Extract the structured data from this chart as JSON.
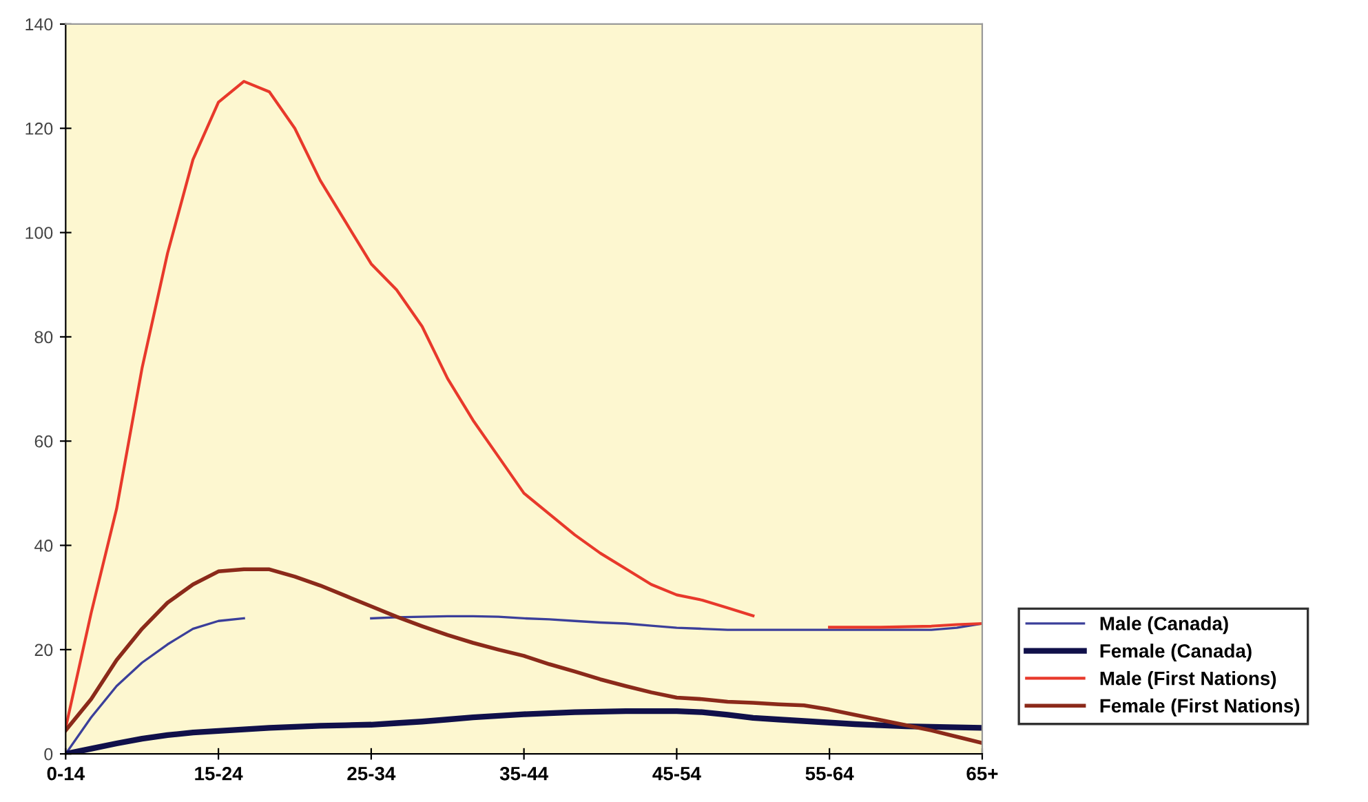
{
  "chart_data": {
    "type": "line",
    "categories": [
      "0-14",
      null,
      null,
      null,
      null,
      null,
      "15-24",
      null,
      null,
      null,
      null,
      null,
      "25-34",
      null,
      null,
      null,
      null,
      null,
      "35-44",
      null,
      null,
      null,
      null,
      null,
      "45-54",
      null,
      null,
      null,
      null,
      null,
      "55-64",
      null,
      null,
      null,
      null,
      null,
      "65+"
    ],
    "ylim": [
      0,
      140
    ],
    "yticks": [
      0,
      20,
      40,
      60,
      80,
      100,
      120,
      140
    ],
    "grid": false,
    "legend": "right",
    "marker": "none",
    "line_style": "solid",
    "series": [
      {
        "name": "Male (Canada)",
        "color": "#3b3f9a",
        "values": [
          0,
          7,
          13,
          17.5,
          21,
          24,
          25.5,
          26,
          null,
          null,
          null,
          null,
          26,
          26.2,
          26.3,
          26.4,
          26.4,
          26.3,
          26,
          25.8,
          25.5,
          25.2,
          25,
          24.6,
          24.2,
          24,
          23.8,
          23.8,
          23.8,
          23.8,
          23.8,
          23.8,
          23.8,
          23.8,
          23.8,
          24.2,
          25
        ]
      },
      {
        "name": "Female (Canada)",
        "color": "#10104a",
        "values": [
          0,
          1,
          2,
          2.9,
          3.6,
          4.1,
          4.4,
          4.7,
          5,
          5.2,
          5.4,
          5.5,
          5.6,
          5.9,
          6.2,
          6.6,
          7,
          7.3,
          7.6,
          7.8,
          8,
          8.1,
          8.2,
          8.2,
          8.2,
          8,
          7.5,
          6.9,
          6.6,
          6.3,
          6,
          5.7,
          5.5,
          5.3,
          5.2,
          5.1,
          5
        ]
      },
      {
        "name": "Male (First Nations)",
        "color": "#e8392b",
        "values": [
          5,
          27,
          47,
          74,
          96,
          114,
          125,
          129,
          127,
          120,
          110,
          102,
          94,
          89,
          82,
          72,
          64,
          57,
          50,
          46,
          42,
          38.5,
          35.5,
          32.5,
          30.5,
          29.5,
          28,
          26.5,
          null,
          null,
          24.3,
          24.3,
          24.3,
          24.4,
          24.5,
          24.8,
          25
        ]
      },
      {
        "name": "Female (First Nations)",
        "color": "#8b2a1a",
        "values": [
          4.5,
          10.5,
          18,
          24,
          29,
          32.5,
          35,
          35.4,
          35.4,
          34,
          32.3,
          30.3,
          28.3,
          26.3,
          24.5,
          22.8,
          21.3,
          20,
          18.8,
          17.2,
          15.8,
          14.3,
          13,
          11.8,
          10.8,
          10.5,
          10,
          9.8,
          9.5,
          9.3,
          8.5,
          7.5,
          6.5,
          5.5,
          4.5,
          3.3,
          2.1
        ]
      }
    ]
  }
}
